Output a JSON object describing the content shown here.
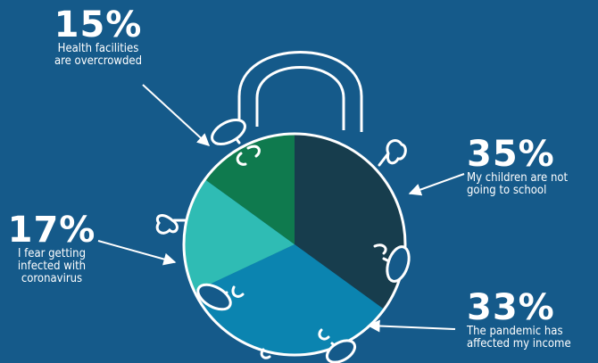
{
  "colors": {
    "background": "#155a8a",
    "outline": "#ffffff"
  },
  "chart_data": {
    "type": "pie",
    "title": "",
    "slices": [
      {
        "label": "My children are not going to school",
        "value": 35,
        "display": "35%",
        "color": "#173d4d"
      },
      {
        "label": "The pandemic has affected my income",
        "value": 33,
        "display": "33%",
        "color": "#0b84b0"
      },
      {
        "label": "I fear getting infected with coronavirus",
        "value": 17,
        "display": "17%",
        "color": "#2fbcb4"
      },
      {
        "label": "Health facilities are overcrowded",
        "value": 15,
        "display": "15%",
        "color": "#0f7a4e"
      }
    ],
    "icon": "virus-padlock"
  },
  "labels": {
    "health": {
      "pct": "15%",
      "text": "Health facilities\nare overcrowded"
    },
    "children": {
      "pct": "35%",
      "text": "My children are not\ngoing to school"
    },
    "fear": {
      "pct": "17%",
      "text": "I fear getting\ninfected with\ncoronavirus"
    },
    "income": {
      "pct": "33%",
      "text": "The pandemic has\naffected my income"
    }
  }
}
